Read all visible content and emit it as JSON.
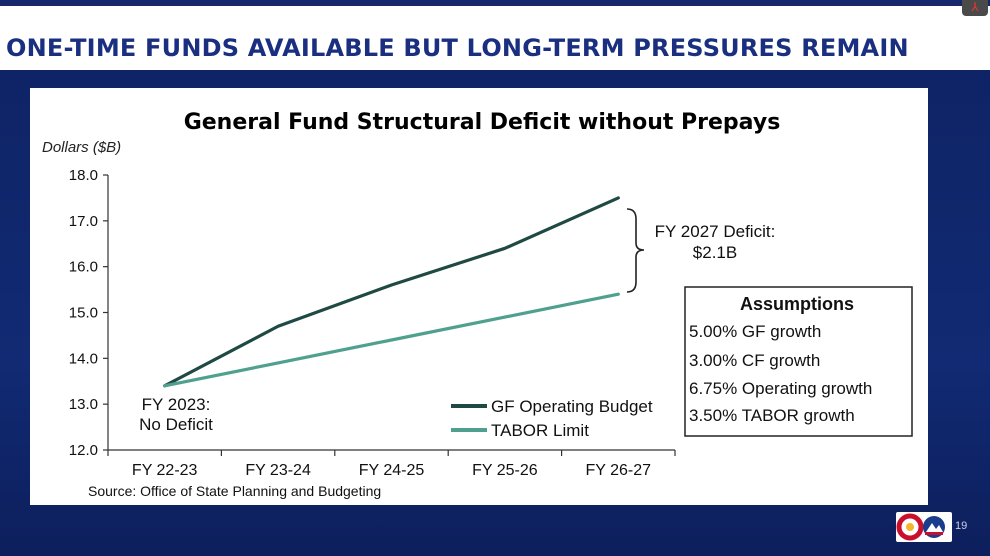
{
  "slide": {
    "title": "ONE-TIME FUNDS AVAILABLE BUT LONG-TERM PRESSURES REMAIN",
    "page_number": "19"
  },
  "colors": {
    "navy": "#0f2466",
    "title_blue": "#1a2f80",
    "gf_line": "#1f4a44",
    "tabor_line": "#4fa08e"
  },
  "chart_data": {
    "type": "line",
    "title": "General Fund Structural Deficit without Prepays",
    "ylabel": "Dollars ($B)",
    "xlabel": "",
    "categories": [
      "FY 22-23",
      "FY 23-24",
      "FY 24-25",
      "FY 25-26",
      "FY 26-27"
    ],
    "ylim": [
      12.0,
      18.0
    ],
    "yticks": [
      "12.0",
      "13.0",
      "14.0",
      "15.0",
      "16.0",
      "17.0",
      "18.0"
    ],
    "grid": false,
    "legend_position": "bottom-center",
    "series": [
      {
        "name": "GF Operating Budget",
        "values": [
          13.4,
          14.7,
          15.6,
          16.4,
          17.5
        ],
        "color": "#1f4a44"
      },
      {
        "name": "TABOR Limit",
        "values": [
          13.4,
          13.9,
          14.4,
          14.9,
          15.4
        ],
        "color": "#4fa08e"
      }
    ],
    "annotations": {
      "start_line1": "FY 2023:",
      "start_line2": "No Deficit",
      "deficit_line1": "FY 2027 Deficit:",
      "deficit_line2": "$2.1B"
    },
    "assumptions": {
      "title": "Assumptions",
      "items": [
        "5.00% GF growth",
        "3.00% CF growth",
        "6.75% Operating growth",
        "3.50% TABOR growth"
      ]
    },
    "source": "Source: Office of State Planning and Budgeting"
  }
}
